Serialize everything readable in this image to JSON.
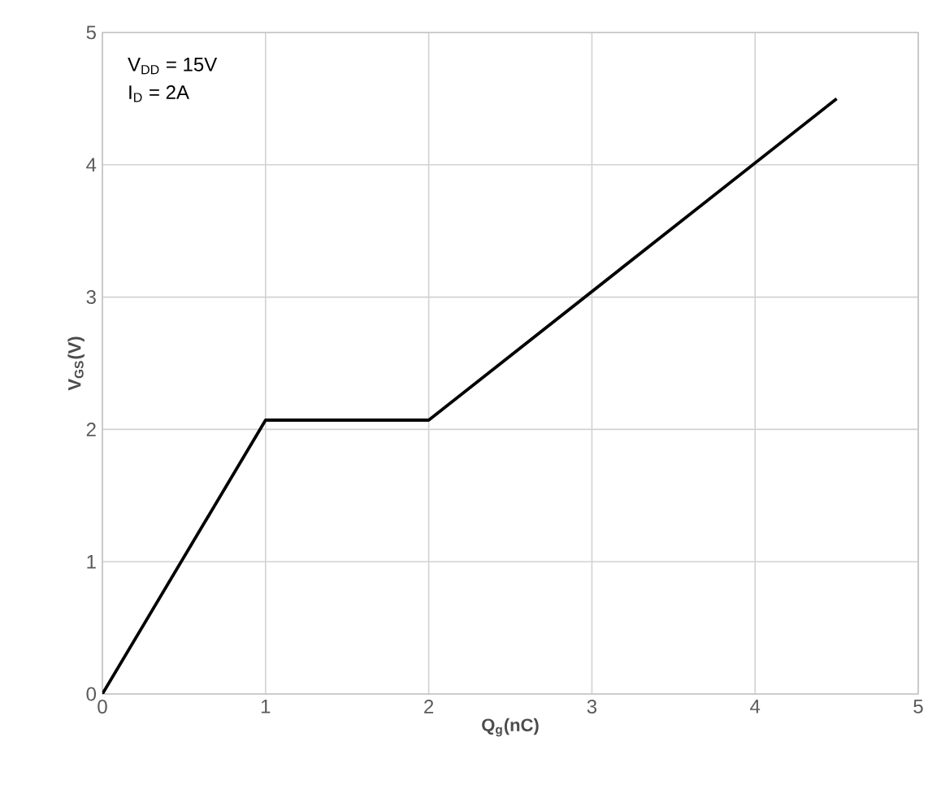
{
  "chart_data": {
    "type": "line",
    "xlabel": "Q$_{g}$(nC)",
    "ylabel": "V$_{GS}$(V)",
    "annotations": [
      "V$_{DD}$ = 15V",
      "I$_{D}$ = 2A"
    ],
    "x": [
      0,
      1,
      2,
      4.5
    ],
    "series": [
      {
        "color": "#000000",
        "values": [
          0,
          2.07,
          2.07,
          4.5
        ]
      }
    ],
    "xlim": [
      0,
      5
    ],
    "ylim": [
      0,
      5
    ],
    "xticks": [
      0,
      1,
      2,
      3,
      4,
      5
    ],
    "yticks": [
      0,
      1,
      2,
      3,
      4,
      5
    ],
    "grid": true
  }
}
